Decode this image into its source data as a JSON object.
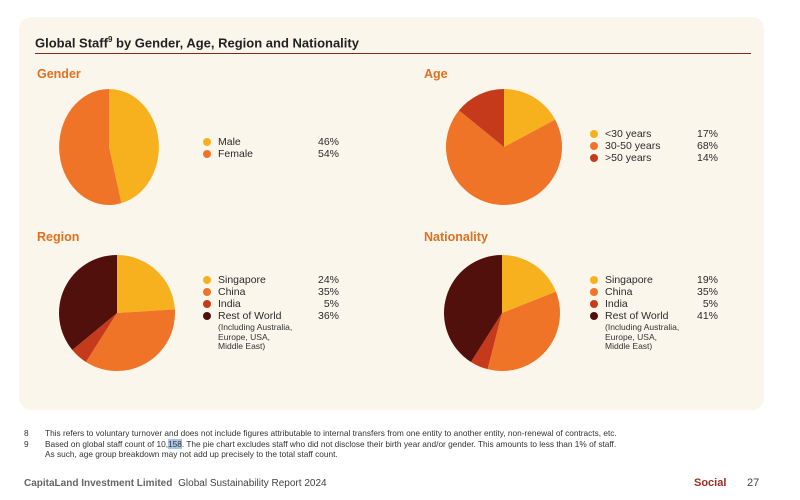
{
  "title_main": "Global Staff",
  "title_sup": "9",
  "title_rest": " by Gender, Age, Region and Nationality",
  "colors": {
    "yellow": "#f7b11f",
    "orange": "#ef7428",
    "red": "#c63a1c",
    "dark": "#52100d"
  },
  "chart_data": [
    {
      "type": "pie",
      "title": "Gender",
      "start_angle_deg": 0,
      "slices": [
        {
          "label": "Male",
          "value": 46,
          "display": "46%",
          "color": "#f7b11f"
        },
        {
          "label": "Female",
          "value": 54,
          "display": "54%",
          "color": "#ef7428"
        }
      ]
    },
    {
      "type": "pie",
      "title": "Age",
      "start_angle_deg": 0,
      "slices": [
        {
          "label": "<30 years",
          "value": 17,
          "display": "17%",
          "color": "#f7b11f"
        },
        {
          "label": "30-50 years",
          "value": 68,
          "display": "68%",
          "color": "#ef7428"
        },
        {
          "label": ">50 years",
          "value": 14,
          "display": "14%",
          "color": "#c63a1c"
        }
      ]
    },
    {
      "type": "pie",
      "title": "Region",
      "start_angle_deg": 0,
      "slices": [
        {
          "label": "Singapore",
          "value": 24,
          "display": "24%",
          "color": "#f7b11f"
        },
        {
          "label": "China",
          "value": 35,
          "display": "35%",
          "color": "#ef7428"
        },
        {
          "label": "India",
          "value": 5,
          "display": "5%",
          "color": "#c63a1c"
        },
        {
          "label": "Rest of World",
          "value": 36,
          "display": "36%",
          "color": "#52100d"
        }
      ],
      "note": [
        "(Including Australia,",
        "Europe, USA,",
        "Middle East)"
      ]
    },
    {
      "type": "pie",
      "title": "Nationality",
      "start_angle_deg": 0,
      "slices": [
        {
          "label": "Singapore",
          "value": 19,
          "display": "19%",
          "color": "#f7b11f"
        },
        {
          "label": "China",
          "value": 35,
          "display": "35%",
          "color": "#ef7428"
        },
        {
          "label": "India",
          "value": 5,
          "display": "5%",
          "color": "#c63a1c"
        },
        {
          "label": "Rest of World",
          "value": 41,
          "display": "41%",
          "color": "#52100d"
        }
      ],
      "note": [
        "(Including Australia,",
        "Europe, USA,",
        "Middle East)"
      ]
    }
  ],
  "footnotes": [
    {
      "num": "8",
      "text": "This refers to voluntary turnover and does not include figures attributable to internal transfers from one entity to another entity, non-renewal of contracts, etc."
    },
    {
      "num": "9",
      "text_pre": "Based on global staff count of 10,",
      "highlight": "158",
      "text_post": ". The pie chart excludes staff who did not disclose their birth year and/or gender. This amounts to less than 1% of staff.",
      "text_line2": "As such, age group breakdown may not add up precisely to the total staff count."
    }
  ],
  "footer": {
    "company": "CapitaLand Investment Limited",
    "report": "Global Sustainability Report 2024",
    "section": "Social",
    "page": "27"
  }
}
